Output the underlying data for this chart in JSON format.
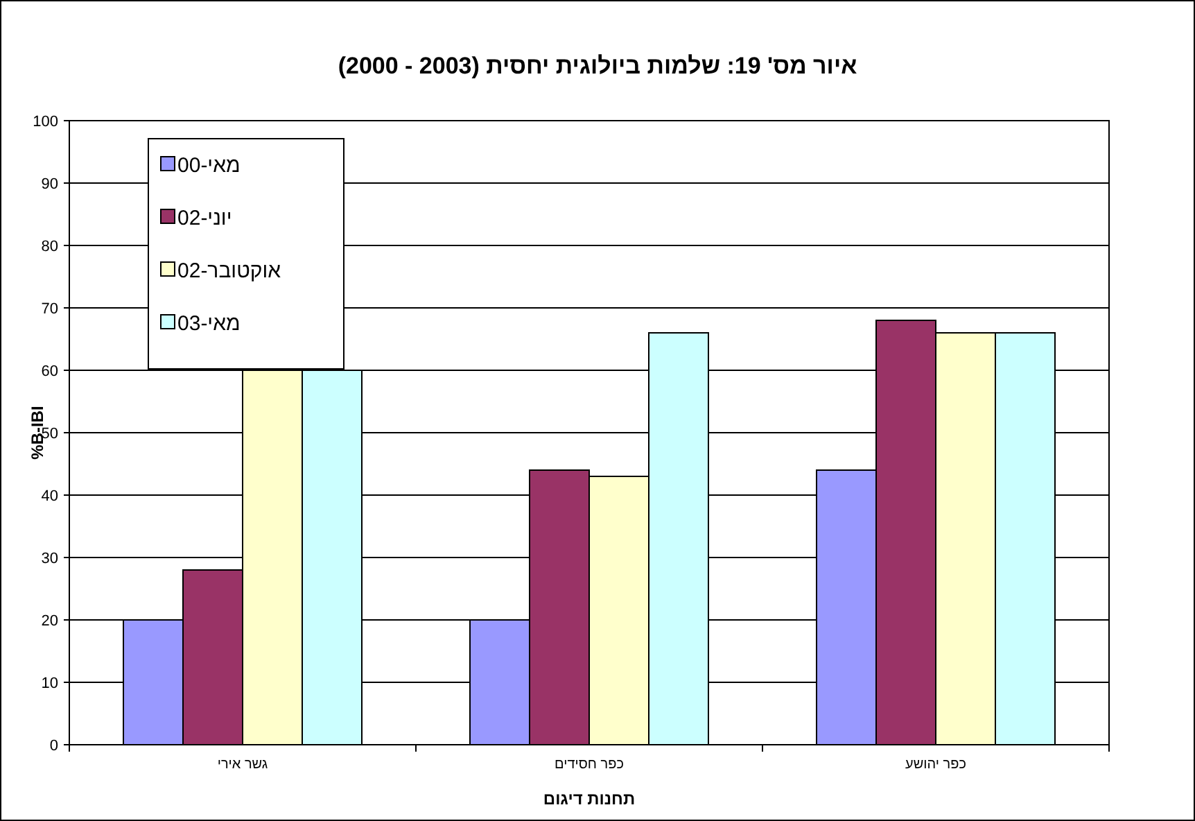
{
  "chart_data": {
    "type": "bar",
    "title": "איור מס' 19: שלמות ביולוגית יחסית (2003 - 2000)",
    "xlabel": "תחנות דיגום",
    "ylabel": "%B-IBI",
    "categories": [
      "גשר אירי",
      "כפר חסידים",
      "כפר יהושע"
    ],
    "series": [
      {
        "name": "מאי-00",
        "color": "#9999ff",
        "values": [
          20,
          20,
          44
        ]
      },
      {
        "name": "יוני-02",
        "color": "#993366",
        "values": [
          28,
          44,
          68
        ]
      },
      {
        "name": "אוקטובר-02",
        "color": "#ffffcc",
        "values": [
          60,
          43,
          66
        ]
      },
      {
        "name": "מאי-03",
        "color": "#ccffff",
        "values": [
          60,
          66,
          66
        ]
      }
    ],
    "ylim": [
      0,
      100
    ],
    "yticks": [
      0,
      10,
      20,
      30,
      40,
      50,
      60,
      70,
      80,
      90,
      100
    ],
    "grid": "y",
    "legend": "top left"
  }
}
